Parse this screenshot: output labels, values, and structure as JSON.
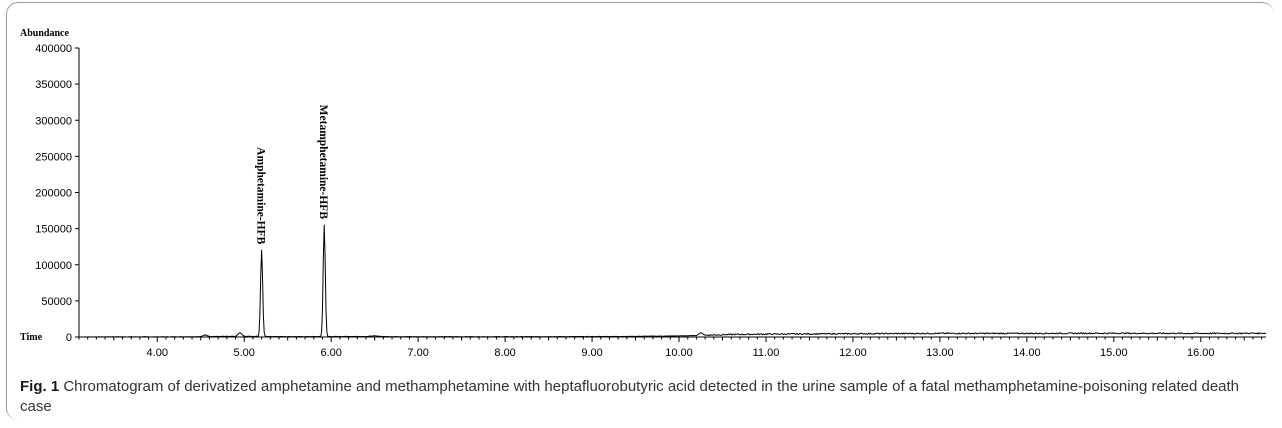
{
  "chart_data": {
    "type": "line",
    "ylabel": "Abundance",
    "xlabel": "Time",
    "xlim": [
      3.1,
      16.75
    ],
    "ylim": [
      0,
      400000
    ],
    "x_ticks": [
      4.0,
      5.0,
      6.0,
      7.0,
      8.0,
      9.0,
      10.0,
      11.0,
      12.0,
      13.0,
      14.0,
      15.0,
      16.0
    ],
    "x_tick_labels": [
      "4.00",
      "5.00",
      "6.00",
      "7.00",
      "8.00",
      "9.00",
      "10.00",
      "11.00",
      "12.00",
      "13.00",
      "14.00",
      "15.00",
      "16.00"
    ],
    "y_ticks": [
      0,
      50000,
      100000,
      150000,
      200000,
      250000,
      300000,
      350000,
      400000
    ],
    "y_tick_labels": [
      "0",
      "50000",
      "100000",
      "150000",
      "200000",
      "250000",
      "300000",
      "350000",
      "400000"
    ],
    "baseline": [
      [
        3.1,
        0
      ],
      [
        3.5,
        300
      ],
      [
        4.0,
        200
      ],
      [
        4.5,
        500
      ],
      [
        4.55,
        3000
      ],
      [
        4.6,
        800
      ],
      [
        4.9,
        800
      ],
      [
        4.95,
        6000
      ],
      [
        5.0,
        1000
      ],
      [
        5.6,
        500
      ],
      [
        6.4,
        800
      ],
      [
        6.5,
        1500
      ],
      [
        6.6,
        600
      ],
      [
        7.0,
        400
      ],
      [
        8.0,
        400
      ],
      [
        9.0,
        600
      ],
      [
        9.5,
        900
      ],
      [
        10.0,
        1500
      ],
      [
        10.2,
        2000
      ],
      [
        10.25,
        6000
      ],
      [
        10.3,
        2500
      ],
      [
        10.6,
        3500
      ],
      [
        11.0,
        4000
      ],
      [
        12.0,
        4500
      ],
      [
        13.0,
        5000
      ],
      [
        14.0,
        5000
      ],
      [
        15.0,
        5200
      ],
      [
        16.0,
        5000
      ],
      [
        16.75,
        5200
      ]
    ],
    "peaks": [
      {
        "label": "Amphetamine-HFB",
        "x": 5.2,
        "y": 120000
      },
      {
        "label": "Metamphetamine-HFB",
        "x": 5.92,
        "y": 155000
      }
    ]
  },
  "caption": {
    "label": "Fig. 1",
    "text": " Chromatogram of derivatized amphetamine and methamphetamine with heptafluorobutyric acid detected in the urine sample of a fatal methamphetamine-poisoning related death case"
  }
}
